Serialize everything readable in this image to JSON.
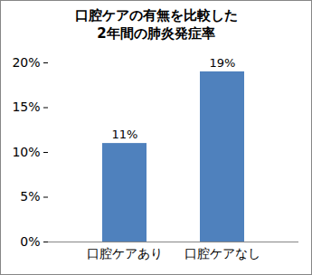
{
  "chart_data": {
    "type": "bar",
    "title": "口腔ケアの有無を比較した\n2年間の肺炎発症率",
    "categories": [
      "口腔ケアあり",
      "口腔ケアなし"
    ],
    "values": [
      11,
      19
    ],
    "value_labels": [
      "11%",
      "19%"
    ],
    "color": "#4f81bd",
    "ylim": [
      0,
      20
    ],
    "yticks": [
      {
        "value": 0,
        "label": "0%"
      },
      {
        "value": 5,
        "label": "5%"
      },
      {
        "value": 10,
        "label": "10%"
      },
      {
        "value": 15,
        "label": "15%"
      },
      {
        "value": 20,
        "label": "20%"
      }
    ],
    "grid": false,
    "data_labels": true
  }
}
